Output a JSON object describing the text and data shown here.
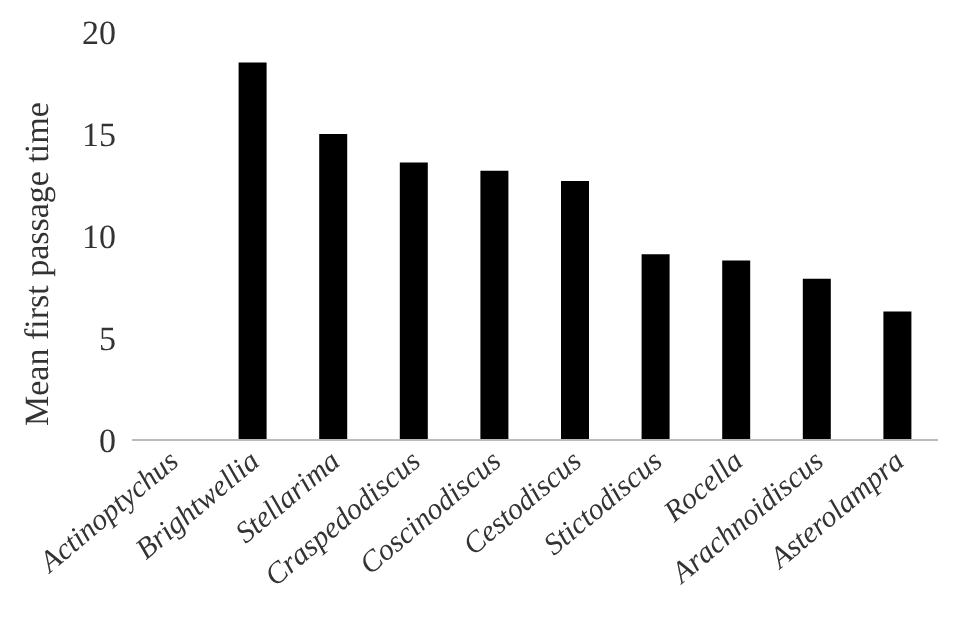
{
  "chart_data": {
    "type": "bar",
    "ylabel": "Mean first passage time",
    "categories": [
      "Actinoptychus",
      "Brightwellia",
      "Stellarima",
      "Craspedodiscus",
      "Coscinodiscus",
      "Cestodiscus",
      "Stictodiscus",
      "Rocella",
      "Arachnoidiscus",
      "Asterolampra"
    ],
    "values": [
      0,
      18.5,
      15,
      13.6,
      13.2,
      12.7,
      9.1,
      8.8,
      7.9,
      6.3
    ],
    "color": "#000000",
    "ylim": [
      0,
      20
    ],
    "yticks": [
      0,
      5,
      10,
      15,
      20
    ],
    "grid": false
  }
}
